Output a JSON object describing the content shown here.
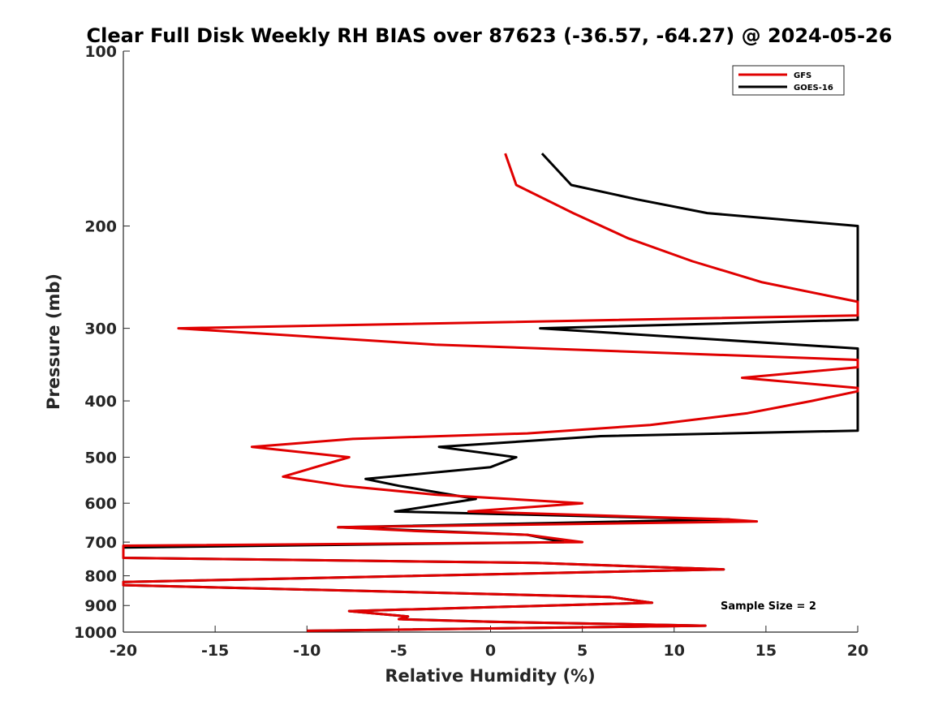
{
  "chart_data": {
    "type": "line",
    "title": "Clear Full Disk Weekly RH BIAS over 87623 (-36.57, -64.27) @ 2024-05-26",
    "xlabel": "Relative Humidity (%)",
    "ylabel": "Pressure (mb)",
    "xlim": [
      -20,
      20
    ],
    "ylim": [
      100,
      1000
    ],
    "yscale": "log",
    "y_reversed": true,
    "x_ticks": [
      "-20",
      "-15",
      "-10",
      "-5",
      "0",
      "5",
      "10",
      "15",
      "20"
    ],
    "y_ticks": [
      "100",
      "200",
      "300",
      "400",
      "500",
      "600",
      "700",
      "800",
      "900",
      "1000"
    ],
    "grid": false,
    "legend_position": "top-right",
    "annotation": "Sample Size = 2",
    "series": [
      {
        "name": "GFS",
        "color": "#e00000",
        "points": [
          [
            0.8,
            150
          ],
          [
            1.4,
            170
          ],
          [
            4.5,
            190
          ],
          [
            7.5,
            210
          ],
          [
            11,
            230
          ],
          [
            14.8,
            250
          ],
          [
            20,
            270
          ],
          [
            20,
            285
          ],
          [
            -17,
            300
          ],
          [
            -3,
            320
          ],
          [
            20,
            340
          ],
          [
            20,
            350
          ],
          [
            13.7,
            365
          ],
          [
            20,
            380
          ],
          [
            20,
            385
          ],
          [
            17.5,
            400
          ],
          [
            14,
            420
          ],
          [
            8.7,
            440
          ],
          [
            2,
            455
          ],
          [
            -7.5,
            465
          ],
          [
            -13,
            480
          ],
          [
            -7.7,
            500
          ],
          [
            -11.3,
            540
          ],
          [
            -8,
            560
          ],
          [
            -3,
            580
          ],
          [
            1,
            590
          ],
          [
            5,
            600
          ],
          [
            -1.2,
            620
          ],
          [
            13,
            640
          ],
          [
            14.5,
            645
          ],
          [
            -8.3,
            660
          ],
          [
            -4,
            670
          ],
          [
            2,
            680
          ],
          [
            5,
            700
          ],
          [
            -20,
            710
          ],
          [
            -20,
            745
          ],
          [
            2.5,
            760
          ],
          [
            12.7,
            780
          ],
          [
            -20,
            820
          ],
          [
            -20,
            830
          ],
          [
            6.5,
            870
          ],
          [
            8.8,
            890
          ],
          [
            -7.7,
            920
          ],
          [
            -4.5,
            940
          ],
          [
            -5,
            950
          ],
          [
            0,
            960
          ],
          [
            11.7,
            975
          ],
          [
            -10,
            995
          ]
        ]
      },
      {
        "name": "GOES-16",
        "color": "#000000",
        "points": [
          [
            2.8,
            150
          ],
          [
            4.4,
            170
          ],
          [
            8,
            180
          ],
          [
            11.8,
            190
          ],
          [
            20,
            200
          ],
          [
            20,
            290
          ],
          [
            2.7,
            300
          ],
          [
            20,
            325
          ],
          [
            20,
            450
          ],
          [
            6,
            460
          ],
          [
            -2.8,
            480
          ],
          [
            1.4,
            500
          ],
          [
            0,
            520
          ],
          [
            -6.8,
            545
          ],
          [
            -5,
            560
          ],
          [
            -0.8,
            590
          ],
          [
            -5.2,
            620
          ],
          [
            13,
            640
          ],
          [
            -8.3,
            660
          ],
          [
            2,
            680
          ],
          [
            4,
            700
          ],
          [
            -20,
            715
          ],
          [
            -20,
            745
          ],
          [
            2.5,
            760
          ],
          [
            12.7,
            780
          ],
          [
            -20,
            820
          ],
          [
            -20,
            830
          ],
          [
            6.5,
            870
          ],
          [
            8.8,
            890
          ],
          [
            -7.7,
            920
          ],
          [
            -4.5,
            940
          ],
          [
            -4.8,
            950
          ],
          [
            0,
            960
          ],
          [
            11.7,
            975
          ],
          [
            -10,
            995
          ]
        ]
      }
    ]
  }
}
